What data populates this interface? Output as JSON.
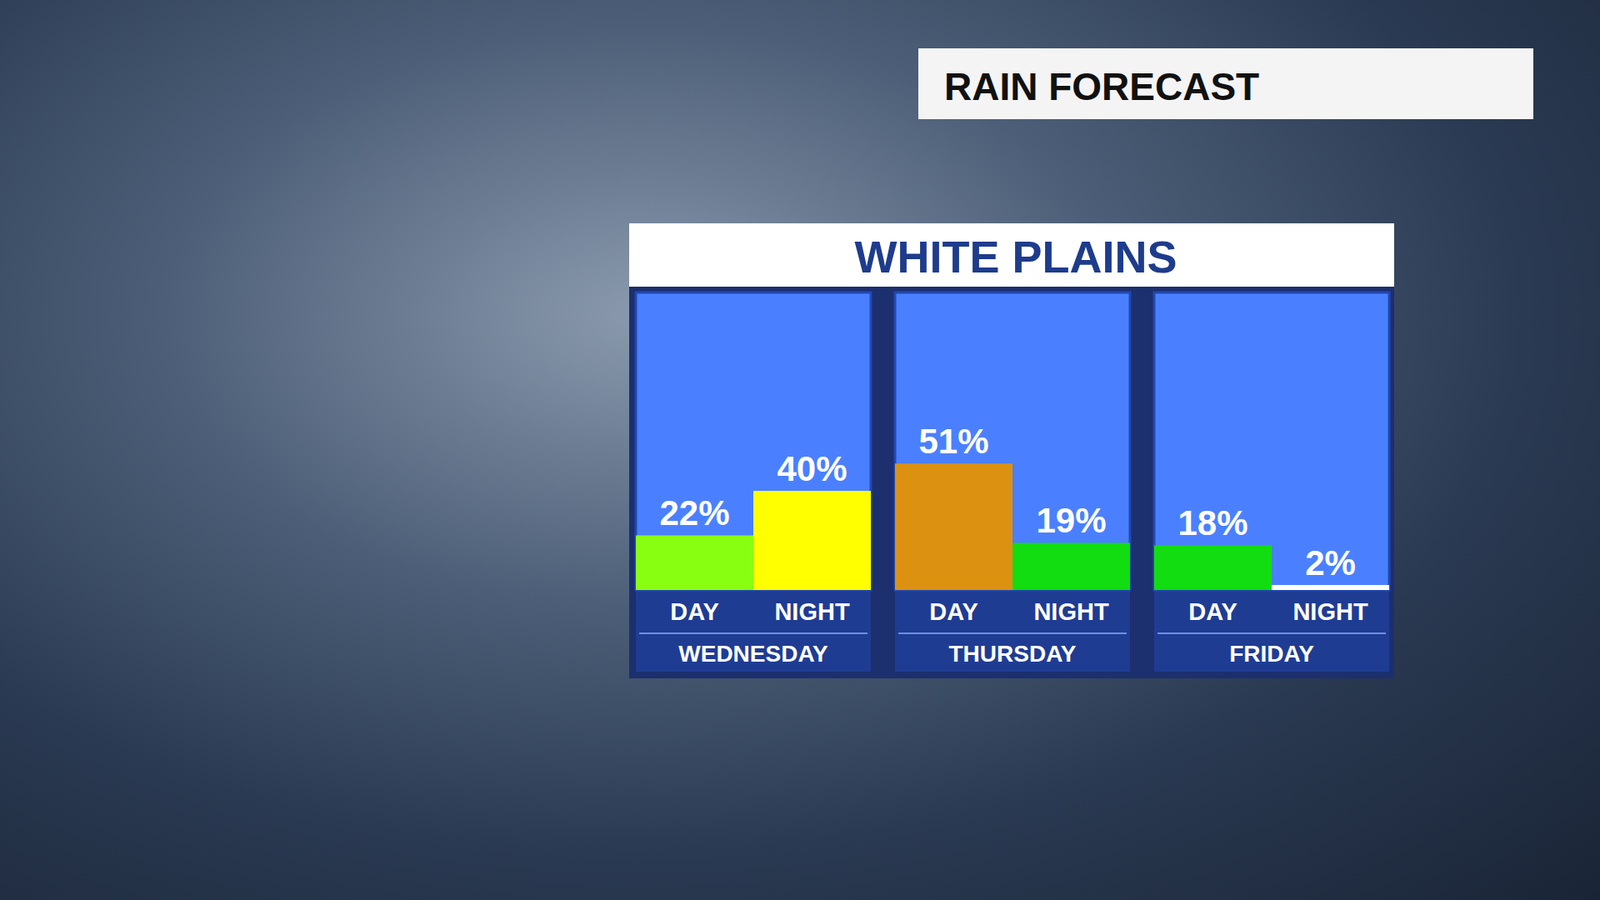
{
  "header": "RAIN FORECAST",
  "chart_data": {
    "type": "bar",
    "title": "WHITE PLAINS",
    "groups": [
      "WEDNESDAY",
      "THURSDAY",
      "FRIDAY"
    ],
    "categories": [
      "DAY",
      "NIGHT",
      "DAY",
      "NIGHT",
      "DAY",
      "NIGHT"
    ],
    "values": [
      22,
      40,
      51,
      19,
      18,
      2
    ],
    "value_labels": [
      "22%",
      "40%",
      "51%",
      "19%",
      "18%",
      "2%"
    ],
    "colors": [
      "#88ff11",
      "#ffff00",
      "#dd9111",
      "#11dd11",
      "#11dd11",
      "#ffffff"
    ],
    "ylim": [
      0,
      120
    ],
    "grid": false,
    "data_labels": true,
    "tick_labels": "x"
  }
}
